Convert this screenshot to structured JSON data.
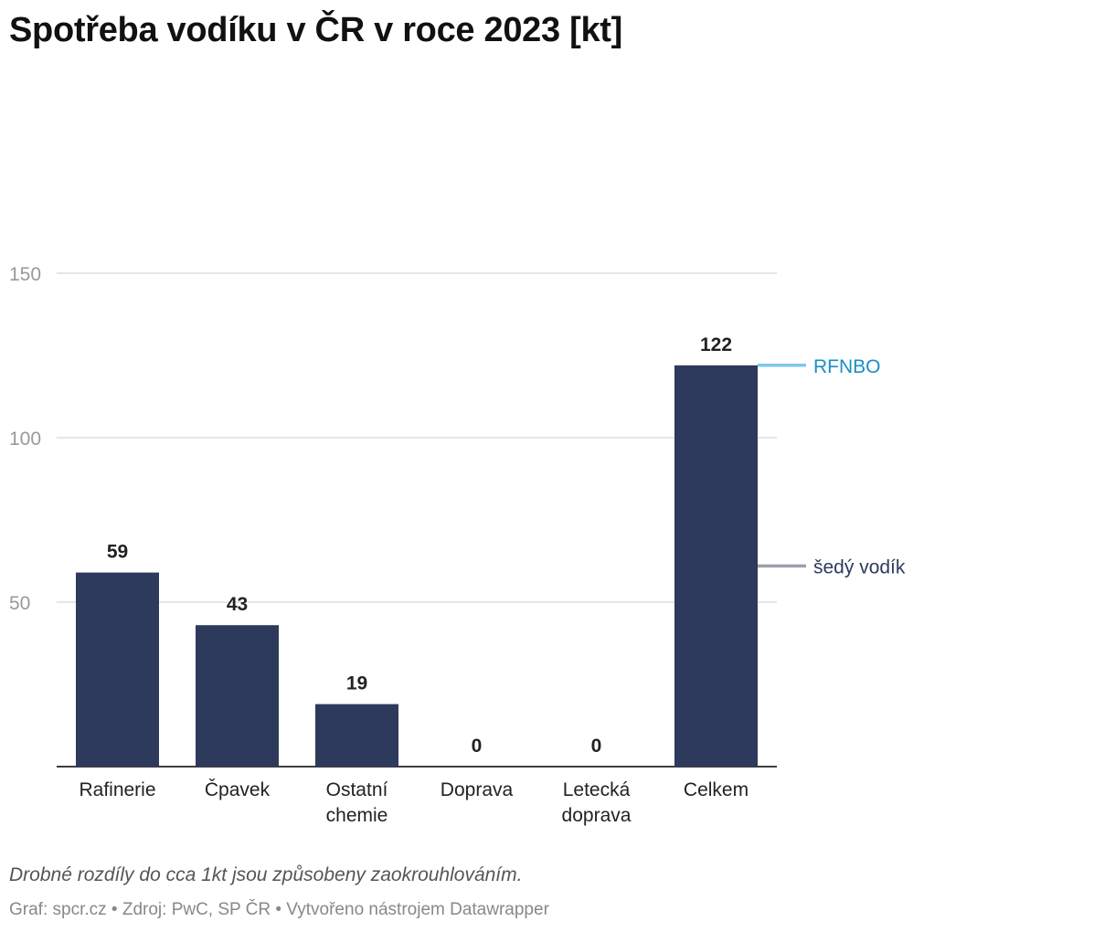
{
  "title": "Spotřeba vodíku v ČR v roce 2023 [kt]",
  "note": "Drobné rozdíly do cca 1kt jsou způsobeny zaokrouhlováním.",
  "source": "Graf: spcr.cz • Zdroj: PwC, SP ČR • Vytvořeno nástrojem Datawrapper",
  "colors": {
    "bar": "#2e3a5c",
    "rfnbo": "#7ec8e8",
    "rfnbo_text": "#1a8fc4",
    "grey_hydrogen": "#9ba0ad",
    "grey_hydrogen_text": "#2e3a5c",
    "grid": "#dddddd",
    "axis_text": "#999999"
  },
  "chart_data": {
    "type": "bar",
    "categories": [
      [
        "Rafinerie"
      ],
      [
        "Čpavek"
      ],
      [
        "Ostatní",
        "chemie"
      ],
      [
        "Doprava"
      ],
      [
        "Letecká",
        "doprava"
      ],
      [
        "Celkem"
      ]
    ],
    "values": [
      59,
      43,
      19,
      0,
      0,
      122
    ],
    "value_labels": [
      "59",
      "43",
      "19",
      "0",
      "0",
      "122"
    ],
    "ylim": [
      0,
      150
    ],
    "yticks": [
      50,
      100,
      150
    ],
    "grid": true,
    "xlabel": "",
    "ylabel": "",
    "annotations": [
      {
        "label": "RFNBO",
        "value": 122,
        "color_key": "rfnbo"
      },
      {
        "label": "šedý vodík",
        "value": 61,
        "color_key": "grey_hydrogen"
      }
    ]
  }
}
